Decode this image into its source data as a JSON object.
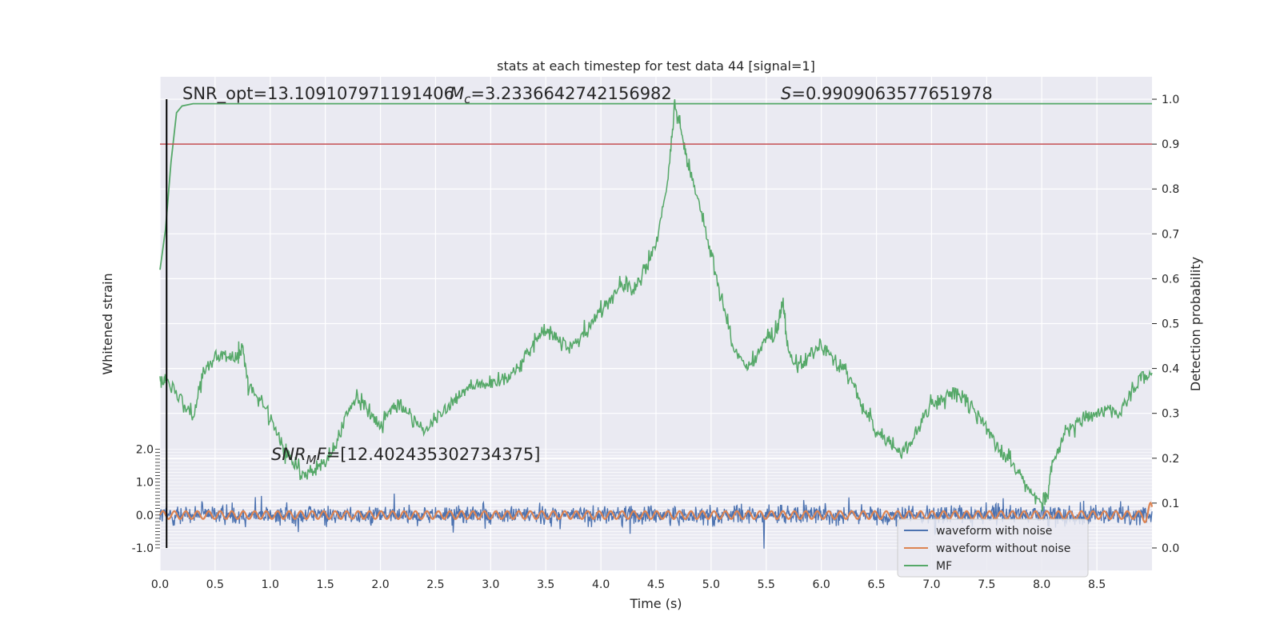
{
  "chart_data": {
    "type": "line",
    "title": "stats at each timestep for test data 44 [signal=1]",
    "xlabel": "Time (s)",
    "ylabel_left": "Whitened strain",
    "ylabel_right": "Detection probability",
    "xlim": [
      0.0,
      9.0
    ],
    "x_ticks": [
      "0.0",
      "0.5",
      "1.0",
      "1.5",
      "2.0",
      "2.5",
      "3.0",
      "3.5",
      "4.0",
      "4.5",
      "5.0",
      "5.5",
      "6.0",
      "6.5",
      "7.0",
      "7.5",
      "8.0",
      "8.5"
    ],
    "right_ylim": [
      -0.05,
      1.05
    ],
    "right_ticks": [
      "0.0",
      "0.1",
      "0.2",
      "0.3",
      "0.4",
      "0.5",
      "0.6",
      "0.7",
      "0.8",
      "0.9",
      "1.0"
    ],
    "left_ticks": [
      "2.0",
      "1.0",
      "0.0",
      "-1.0"
    ],
    "grid": true,
    "legend_position": "lower right",
    "threshold_y": 0.9,
    "marker_x": 0.06,
    "annotations": {
      "snr_opt": "SNR_opt=13.109107971191406",
      "mc_prefix": "M",
      "mc_sub": "c",
      "mc_value": "=3.2336642742156982",
      "s_prefix": "S",
      "s_value": "=0.9909063577651978",
      "snr_mf_prefix": "SNR",
      "snr_mf_sub": "M",
      "snr_mf_mid": "F",
      "snr_mf_value": "=[12.402435302734375]"
    },
    "series": [
      {
        "name": "waveform with noise",
        "color": "#4c72b0",
        "amplitude": 1.0
      },
      {
        "name": "waveform without noise",
        "color": "#dd8452",
        "amplitude": 0.12
      },
      {
        "name": "MF",
        "color": "#55a868",
        "x": [
          0.0,
          0.05,
          0.1,
          0.15,
          0.2,
          0.3,
          0.4,
          0.5,
          1.0,
          9.0
        ],
        "y": [
          0.62,
          0.71,
          0.86,
          0.97,
          0.985,
          0.99,
          0.99,
          0.99,
          0.99,
          0.99
        ]
      },
      {
        "name": "detection probability",
        "color": "#55a868",
        "x": [
          0.0,
          0.05,
          0.2,
          0.3,
          0.4,
          0.5,
          0.6,
          0.7,
          0.75,
          0.8,
          0.9,
          1.0,
          1.1,
          1.2,
          1.3,
          1.4,
          1.5,
          1.6,
          1.7,
          1.8,
          1.9,
          2.0,
          2.1,
          2.2,
          2.3,
          2.4,
          2.5,
          2.6,
          2.7,
          2.8,
          2.9,
          3.0,
          3.1,
          3.2,
          3.3,
          3.4,
          3.5,
          3.6,
          3.7,
          3.8,
          3.9,
          4.0,
          4.1,
          4.2,
          4.3,
          4.4,
          4.5,
          4.6,
          4.67,
          4.75,
          4.8,
          4.9,
          5.0,
          5.1,
          5.2,
          5.3,
          5.4,
          5.5,
          5.6,
          5.65,
          5.7,
          5.8,
          5.9,
          6.0,
          6.1,
          6.2,
          6.3,
          6.4,
          6.5,
          6.6,
          6.7,
          6.8,
          6.9,
          7.0,
          7.1,
          7.2,
          7.3,
          7.4,
          7.5,
          7.6,
          7.7,
          7.8,
          7.9,
          8.0,
          8.05,
          8.1,
          8.2,
          8.3,
          8.4,
          8.5,
          8.6,
          8.7,
          8.8,
          8.9,
          9.0
        ],
        "y": [
          0.39,
          0.37,
          0.33,
          0.3,
          0.4,
          0.42,
          0.43,
          0.43,
          0.45,
          0.36,
          0.33,
          0.29,
          0.23,
          0.19,
          0.16,
          0.17,
          0.19,
          0.23,
          0.3,
          0.34,
          0.3,
          0.27,
          0.31,
          0.32,
          0.29,
          0.26,
          0.29,
          0.31,
          0.34,
          0.36,
          0.37,
          0.36,
          0.38,
          0.39,
          0.42,
          0.46,
          0.49,
          0.47,
          0.45,
          0.46,
          0.5,
          0.53,
          0.56,
          0.59,
          0.57,
          0.62,
          0.68,
          0.8,
          0.99,
          0.9,
          0.85,
          0.76,
          0.66,
          0.55,
          0.45,
          0.4,
          0.42,
          0.47,
          0.48,
          0.55,
          0.44,
          0.41,
          0.43,
          0.46,
          0.42,
          0.4,
          0.36,
          0.3,
          0.26,
          0.24,
          0.21,
          0.23,
          0.28,
          0.32,
          0.33,
          0.35,
          0.33,
          0.3,
          0.27,
          0.23,
          0.2,
          0.16,
          0.13,
          0.1,
          0.11,
          0.19,
          0.25,
          0.27,
          0.29,
          0.3,
          0.31,
          0.3,
          0.34,
          0.38,
          0.39
        ]
      }
    ]
  }
}
